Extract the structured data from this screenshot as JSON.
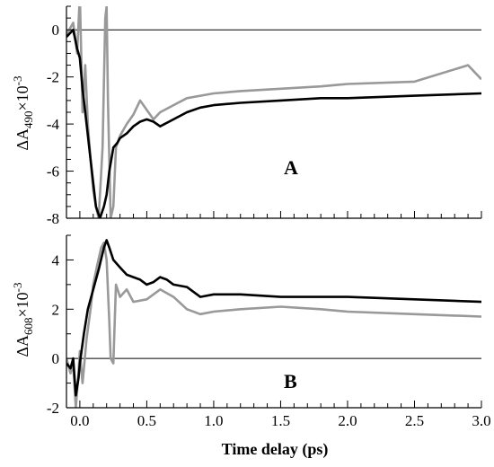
{
  "chart_data": [
    {
      "type": "line",
      "panel_label": "A",
      "ylabel": {
        "prefix": "ΔA",
        "subscript": "490",
        "suffix": "×10",
        "superscript": "-3"
      },
      "xlim": [
        -0.1,
        3.0
      ],
      "ylim": [
        -8,
        1
      ],
      "yticks": [
        0,
        -2,
        -4,
        -6,
        -8
      ],
      "ytick_labels": [
        "0",
        "-2",
        "-4",
        "-6",
        "-8"
      ],
      "zero_line": true,
      "grid": false,
      "series": [
        {
          "color": "#000000",
          "x": [
            -0.1,
            -0.05,
            -0.02,
            0.0,
            0.02,
            0.05,
            0.08,
            0.1,
            0.12,
            0.15,
            0.18,
            0.2,
            0.22,
            0.25,
            0.28,
            0.3,
            0.35,
            0.4,
            0.45,
            0.5,
            0.55,
            0.6,
            0.7,
            0.8,
            0.9,
            1.0,
            1.2,
            1.5,
            1.8,
            2.0,
            2.5,
            3.0
          ],
          "y": [
            -0.3,
            0.0,
            -0.8,
            -1.2,
            -2.5,
            -4.0,
            -5.5,
            -6.5,
            -7.5,
            -8.0,
            -7.5,
            -7.0,
            -6.0,
            -5.0,
            -4.8,
            -4.6,
            -4.4,
            -4.1,
            -3.9,
            -3.8,
            -3.9,
            -4.1,
            -3.8,
            -3.5,
            -3.3,
            -3.2,
            -3.1,
            -3.0,
            -2.9,
            -2.9,
            -2.8,
            -2.7
          ]
        },
        {
          "color": "#999999",
          "x": [
            -0.1,
            -0.05,
            -0.02,
            0.0,
            0.02,
            0.04,
            0.06,
            0.08,
            0.1,
            0.12,
            0.14,
            0.15,
            0.17,
            0.19,
            0.2,
            0.21,
            0.23,
            0.25,
            0.27,
            0.3,
            0.35,
            0.4,
            0.45,
            0.5,
            0.55,
            0.6,
            0.7,
            0.8,
            0.9,
            1.0,
            1.2,
            1.5,
            1.8,
            2.0,
            2.5,
            2.9,
            3.0
          ],
          "y": [
            -0.2,
            0.3,
            -1.0,
            1.5,
            -3.5,
            -1.5,
            -4.0,
            -5.5,
            -6.8,
            -7.5,
            -8.0,
            -7.0,
            -5.0,
            0.5,
            1.0,
            -3.0,
            -8.0,
            -7.5,
            -5.0,
            -4.5,
            -4.0,
            -3.6,
            -3.0,
            -3.4,
            -3.8,
            -3.5,
            -3.2,
            -2.9,
            -2.8,
            -2.7,
            -2.6,
            -2.5,
            -2.4,
            -2.3,
            -2.2,
            -1.5,
            -2.1
          ]
        }
      ]
    },
    {
      "type": "line",
      "panel_label": "B",
      "ylabel": {
        "prefix": "ΔA",
        "subscript": "608",
        "suffix": "×10",
        "superscript": "-3"
      },
      "xlabel": "Time delay (ps)",
      "xlim": [
        -0.1,
        3.0
      ],
      "ylim": [
        -2,
        5
      ],
      "xticks": [
        0.0,
        0.5,
        1.0,
        1.5,
        2.0,
        2.5,
        3.0
      ],
      "xtick_labels": [
        "0.0",
        "0.5",
        "1.0",
        "1.5",
        "2.0",
        "2.5",
        "3.0"
      ],
      "yticks": [
        4,
        2,
        0,
        -2
      ],
      "ytick_labels": [
        "4",
        "2",
        "0",
        "-2"
      ],
      "zero_line": true,
      "grid": false,
      "series": [
        {
          "color": "#000000",
          "x": [
            -0.1,
            -0.07,
            -0.05,
            -0.03,
            -0.01,
            0.0,
            0.03,
            0.06,
            0.1,
            0.14,
            0.18,
            0.2,
            0.22,
            0.25,
            0.3,
            0.35,
            0.4,
            0.45,
            0.5,
            0.55,
            0.6,
            0.65,
            0.7,
            0.8,
            0.9,
            1.0,
            1.2,
            1.5,
            1.8,
            2.0,
            2.5,
            3.0
          ],
          "y": [
            -0.2,
            -0.4,
            0.0,
            -1.5,
            -0.8,
            -0.2,
            1.0,
            2.0,
            2.8,
            3.6,
            4.5,
            4.8,
            4.5,
            4.0,
            3.7,
            3.4,
            3.3,
            3.2,
            3.0,
            3.1,
            3.3,
            3.2,
            3.0,
            2.9,
            2.5,
            2.6,
            2.6,
            2.5,
            2.5,
            2.5,
            2.4,
            2.3
          ]
        },
        {
          "color": "#999999",
          "x": [
            -0.1,
            -0.07,
            -0.05,
            -0.03,
            -0.01,
            0.0,
            0.02,
            0.05,
            0.08,
            0.1,
            0.13,
            0.16,
            0.18,
            0.2,
            0.22,
            0.23,
            0.25,
            0.27,
            0.3,
            0.35,
            0.4,
            0.5,
            0.6,
            0.7,
            0.8,
            0.9,
            1.0,
            1.2,
            1.5,
            1.8,
            2.0,
            2.5,
            3.0
          ],
          "y": [
            0.0,
            -0.6,
            -0.2,
            -2.0,
            -0.6,
            0.3,
            -1.0,
            0.8,
            2.0,
            3.0,
            3.8,
            4.5,
            4.7,
            4.0,
            1.5,
            0.0,
            -0.2,
            3.0,
            2.5,
            2.8,
            2.3,
            2.4,
            2.8,
            2.5,
            2.0,
            1.8,
            1.9,
            2.0,
            2.1,
            2.0,
            1.9,
            1.8,
            1.7
          ]
        }
      ]
    }
  ]
}
